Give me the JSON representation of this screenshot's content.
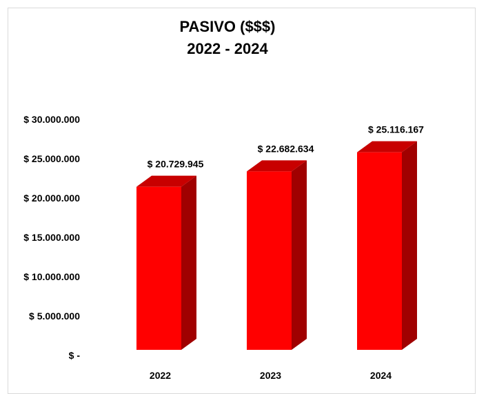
{
  "chart_data": {
    "type": "bar",
    "title": "PASIVO  ($$$)",
    "subtitle": "2022 - 2024",
    "categories": [
      "2022",
      "2023",
      "2024"
    ],
    "values": [
      20729945,
      22682634,
      25116167
    ],
    "data_labels": [
      "$ 20.729.945",
      "$ 22.682.634",
      "$ 25.116.167"
    ],
    "ytick_values": [
      0,
      5000000,
      10000000,
      15000000,
      20000000,
      25000000,
      30000000
    ],
    "ytick_labels": [
      "$ -",
      "$ 5.000.000",
      "$ 10.000.000",
      "$ 15.000.000",
      "$ 20.000.000",
      "$ 25.000.000",
      "$ 30.000.000"
    ],
    "ylim": [
      0,
      30000000
    ],
    "grid": false,
    "legend": "none",
    "colors": {
      "bar_front": "#ff0000",
      "bar_side": "#a00000",
      "bar_top": "#c80000"
    }
  }
}
